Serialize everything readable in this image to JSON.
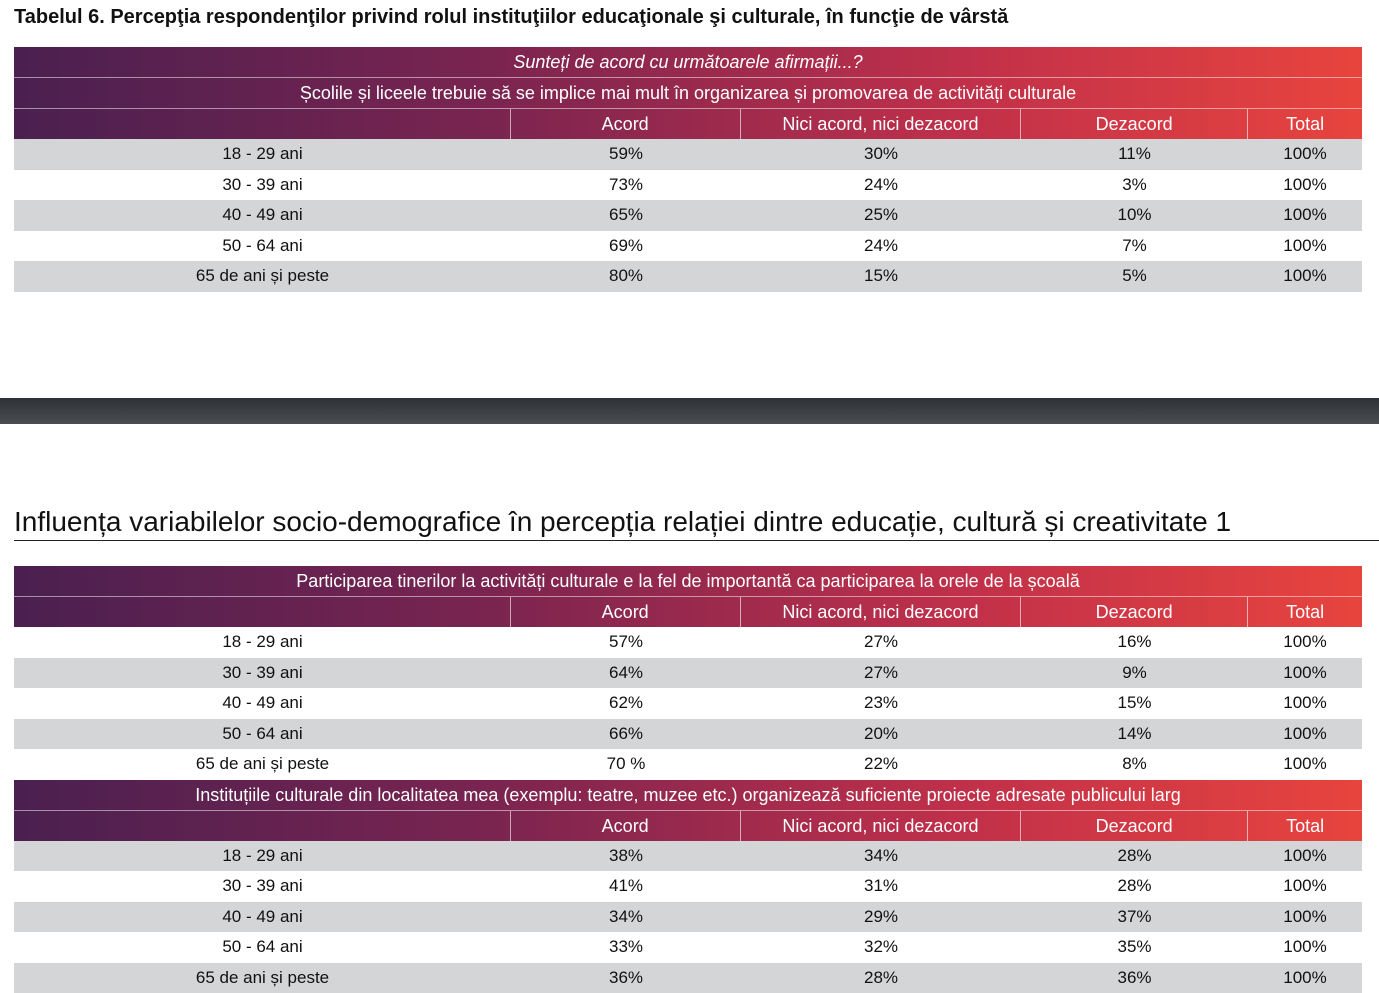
{
  "table6": {
    "title": "Tabelul 6. Percepţia respondenţilor privind rolul instituţiilor educaţionale şi culturale, în funcţie de vârstă",
    "question": "Sunteți de acord cu următoarele afirmații...?",
    "statement": "Școlile și liceele trebuie să se implice mai mult în organizarea și promovarea de activități culturale",
    "columns": [
      "",
      "Acord",
      "Nici acord, nici dezacord",
      "Dezacord",
      "Total"
    ],
    "rows": [
      [
        "18 - 29 ani",
        "59%",
        "30%",
        "11%",
        "100%"
      ],
      [
        "30 - 39 ani",
        "73%",
        "24%",
        "3%",
        "100%"
      ],
      [
        "40 - 49 ani",
        "65%",
        "25%",
        "10%",
        "100%"
      ],
      [
        "50 - 64 ani",
        "69%",
        "24%",
        "7%",
        "100%"
      ],
      [
        "65 de ani și peste",
        "80%",
        "15%",
        "5%",
        "100%"
      ]
    ]
  },
  "section_heading": "Influența variabilelor socio-demografice în percepția relației dintre educație, cultură și creativitate 1",
  "table_participation": {
    "statement": "Participarea tinerilor la activități culturale e la fel de importantă ca participarea la orele de la școală",
    "columns": [
      "",
      "Acord",
      "Nici acord, nici dezacord",
      "Dezacord",
      "Total"
    ],
    "rows": [
      [
        "18 - 29 ani",
        "57%",
        "27%",
        "16%",
        "100%"
      ],
      [
        "30 - 39 ani",
        "64%",
        "27%",
        "9%",
        "100%"
      ],
      [
        "40 - 49 ani",
        "62%",
        "23%",
        "15%",
        "100%"
      ],
      [
        "50 - 64 ani",
        "66%",
        "20%",
        "14%",
        "100%"
      ],
      [
        "65 de ani și peste",
        "70 %",
        "22%",
        "8%",
        "100%"
      ]
    ]
  },
  "table_institutions": {
    "statement": "Instituțiile culturale din localitatea mea (exemplu: teatre, muzee etc.) organizează suficiente proiecte adresate publicului larg",
    "columns": [
      "",
      "Acord",
      "Nici acord, nici dezacord",
      "Dezacord",
      "Total"
    ],
    "rows": [
      [
        "18 - 29 ani",
        "38%",
        "34%",
        "28%",
        "100%"
      ],
      [
        "30 - 39 ani",
        "41%",
        "31%",
        "28%",
        "100%"
      ],
      [
        "40 - 49 ani",
        "34%",
        "29%",
        "37%",
        "100%"
      ],
      [
        "50 - 64 ani",
        "33%",
        "32%",
        "35%",
        "100%"
      ],
      [
        "65 de ani și peste",
        "36%",
        "28%",
        "36%",
        "100%"
      ]
    ]
  }
}
